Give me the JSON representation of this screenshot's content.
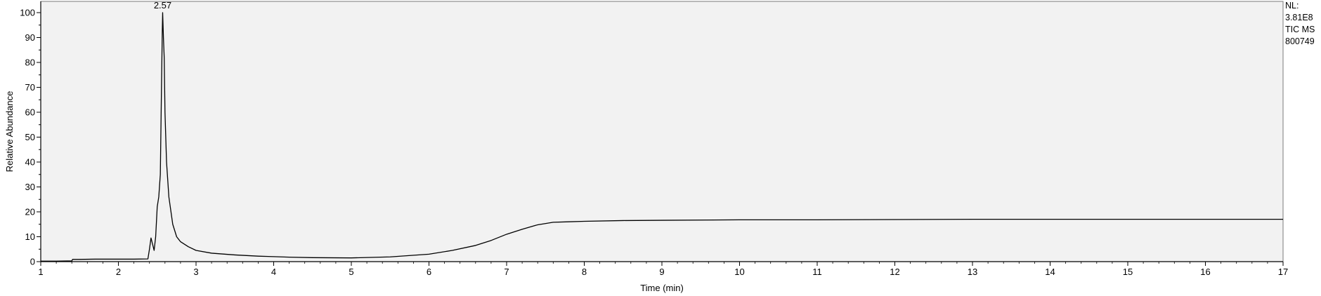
{
  "chart_data": {
    "type": "line",
    "title": "",
    "xlabel": "Time (min)",
    "ylabel": "Relative Abundance",
    "xlim": [
      1,
      17
    ],
    "ylim": [
      0,
      100
    ],
    "x_ticks": [
      1,
      2,
      3,
      4,
      5,
      6,
      7,
      8,
      9,
      10,
      11,
      12,
      13,
      14,
      15,
      16,
      17
    ],
    "y_ticks": [
      0,
      10,
      20,
      30,
      40,
      50,
      60,
      70,
      80,
      90,
      100
    ],
    "grid": false,
    "colors": {
      "plot_background": "#f2f2f2",
      "trace": "#000000",
      "frame": "#000000"
    },
    "peak_annotation": {
      "x": 2.57,
      "y": 100,
      "label": "2.57"
    },
    "info_lines": [
      "NL:",
      "3.81E8",
      "TIC  MS",
      "800749"
    ],
    "series": [
      {
        "points": [
          [
            1.0,
            0.2
          ],
          [
            1.2,
            0.2
          ],
          [
            1.4,
            0.3
          ],
          [
            1.41,
            0.9
          ],
          [
            1.5,
            0.9
          ],
          [
            1.7,
            1.0
          ],
          [
            2.0,
            1.0
          ],
          [
            2.2,
            1.0
          ],
          [
            2.38,
            1.1
          ],
          [
            2.4,
            5.0
          ],
          [
            2.42,
            9.5
          ],
          [
            2.44,
            7.0
          ],
          [
            2.46,
            4.5
          ],
          [
            2.48,
            10.0
          ],
          [
            2.5,
            22.0
          ],
          [
            2.52,
            26.0
          ],
          [
            2.54,
            35.0
          ],
          [
            2.555,
            70.0
          ],
          [
            2.565,
            92.0
          ],
          [
            2.57,
            100.0
          ],
          [
            2.58,
            90.0
          ],
          [
            2.59,
            82.0
          ],
          [
            2.6,
            60.0
          ],
          [
            2.62,
            40.0
          ],
          [
            2.65,
            26.0
          ],
          [
            2.7,
            15.0
          ],
          [
            2.75,
            10.0
          ],
          [
            2.8,
            8.0
          ],
          [
            2.9,
            6.0
          ],
          [
            3.0,
            4.5
          ],
          [
            3.2,
            3.4
          ],
          [
            3.5,
            2.7
          ],
          [
            3.8,
            2.2
          ],
          [
            4.0,
            2.0
          ],
          [
            4.2,
            1.8
          ],
          [
            4.5,
            1.6
          ],
          [
            5.0,
            1.5
          ],
          [
            5.5,
            1.9
          ],
          [
            6.0,
            3.0
          ],
          [
            6.3,
            4.5
          ],
          [
            6.6,
            6.5
          ],
          [
            6.8,
            8.5
          ],
          [
            7.0,
            11.0
          ],
          [
            7.2,
            13.0
          ],
          [
            7.4,
            14.8
          ],
          [
            7.6,
            15.8
          ],
          [
            7.8,
            16.0
          ],
          [
            8.0,
            16.2
          ],
          [
            8.5,
            16.5
          ],
          [
            9.0,
            16.6
          ],
          [
            10.0,
            16.8
          ],
          [
            11.0,
            16.8
          ],
          [
            12.0,
            16.9
          ],
          [
            13.0,
            17.0
          ],
          [
            14.0,
            17.0
          ],
          [
            15.0,
            17.0
          ],
          [
            16.0,
            17.0
          ],
          [
            17.0,
            17.0
          ]
        ]
      }
    ]
  }
}
